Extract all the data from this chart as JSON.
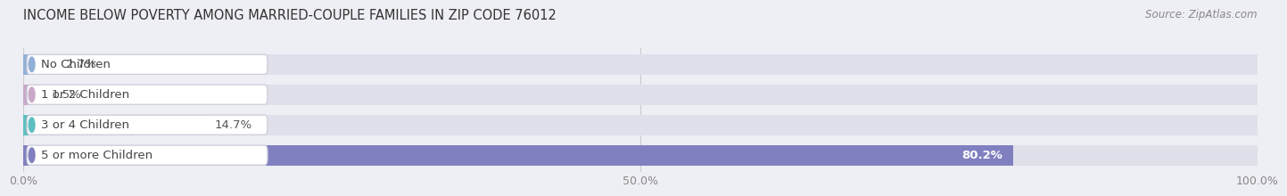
{
  "title": "INCOME BELOW POVERTY AMONG MARRIED-COUPLE FAMILIES IN ZIP CODE 76012",
  "source": "Source: ZipAtlas.com",
  "categories": [
    "No Children",
    "1 or 2 Children",
    "3 or 4 Children",
    "5 or more Children"
  ],
  "values": [
    2.7,
    1.5,
    14.7,
    80.2
  ],
  "bar_colors": [
    "#92afd7",
    "#c9a9c9",
    "#5fbfbf",
    "#8080c0"
  ],
  "bg_color": "#eeeef5",
  "bar_bg_color": "#e0e0eb",
  "xlim": [
    0,
    100
  ],
  "xticks": [
    0.0,
    50.0,
    100.0
  ],
  "xtick_labels": [
    "0.0%",
    "50.0%",
    "100.0%"
  ],
  "title_fontsize": 10.5,
  "source_fontsize": 8.5,
  "label_fontsize": 9.5,
  "value_fontsize": 9.5,
  "tick_fontsize": 9,
  "fig_width": 14.06,
  "fig_height": 2.32
}
